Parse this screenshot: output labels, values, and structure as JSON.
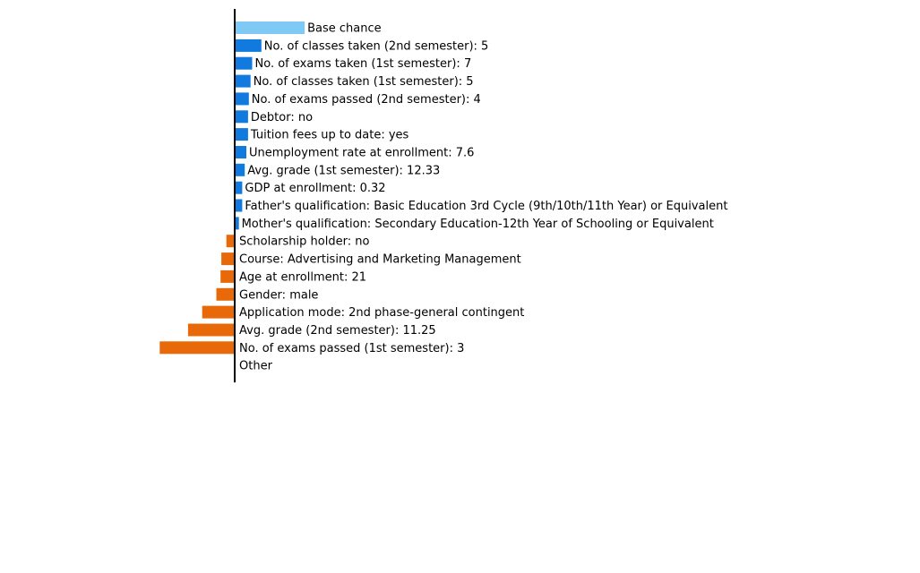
{
  "chart_data": {
    "type": "bar",
    "orientation": "horizontal",
    "description_style": "waterfall-like contribution chart",
    "features": [
      {
        "label": "Base chance",
        "value": 0.42,
        "kind": "base"
      },
      {
        "label": "No. of classes taken (2nd semester): 5",
        "value": 0.16,
        "kind": "positive"
      },
      {
        "label": "No. of exams taken (1st semester): 7",
        "value": 0.105,
        "kind": "positive"
      },
      {
        "label": "No. of classes taken (1st semester): 5",
        "value": 0.095,
        "kind": "positive"
      },
      {
        "label": "No. of exams passed (2nd semester): 4",
        "value": 0.085,
        "kind": "positive"
      },
      {
        "label": "Debtor: no",
        "value": 0.08,
        "kind": "positive"
      },
      {
        "label": "Tuition fees up to date: yes",
        "value": 0.08,
        "kind": "positive"
      },
      {
        "label": "Unemployment rate at enrollment: 7.6",
        "value": 0.07,
        "kind": "positive"
      },
      {
        "label": "Avg. grade (1st semester): 12.33",
        "value": 0.06,
        "kind": "positive"
      },
      {
        "label": "GDP at enrollment: 0.32",
        "value": 0.045,
        "kind": "positive"
      },
      {
        "label": "Father's qualification: Basic Education 3rd Cycle (9th/10th/11th Year) or Equivalent",
        "value": 0.045,
        "kind": "positive"
      },
      {
        "label": "Mother's qualification: Secondary Education-12th Year of Schooling or Equivalent",
        "value": 0.025,
        "kind": "positive"
      },
      {
        "label": "Scholarship holder: no",
        "value": -0.05,
        "kind": "negative"
      },
      {
        "label": "Course: Advertising and Marketing Management",
        "value": -0.08,
        "kind": "negative"
      },
      {
        "label": "Age at enrollment: 21",
        "value": -0.085,
        "kind": "negative"
      },
      {
        "label": "Gender: male",
        "value": -0.11,
        "kind": "negative"
      },
      {
        "label": "Application mode: 2nd phase-general contingent",
        "value": -0.195,
        "kind": "negative"
      },
      {
        "label": "Avg. grade (2nd semester): 11.25",
        "value": -0.28,
        "kind": "negative"
      },
      {
        "label": "No. of exams passed (1st semester): 3",
        "value": -0.45,
        "kind": "negative"
      },
      {
        "label": "Other",
        "value": 0.0,
        "kind": "other"
      }
    ],
    "colors": {
      "base": "#7fcaf5",
      "positive": "#117adf",
      "negative": "#e8690a",
      "axis": "#000000"
    },
    "xlim": [
      -1.4,
      4.1
    ],
    "grid": false,
    "legend": "none",
    "title": "",
    "xlabel": "",
    "ylabel": ""
  }
}
